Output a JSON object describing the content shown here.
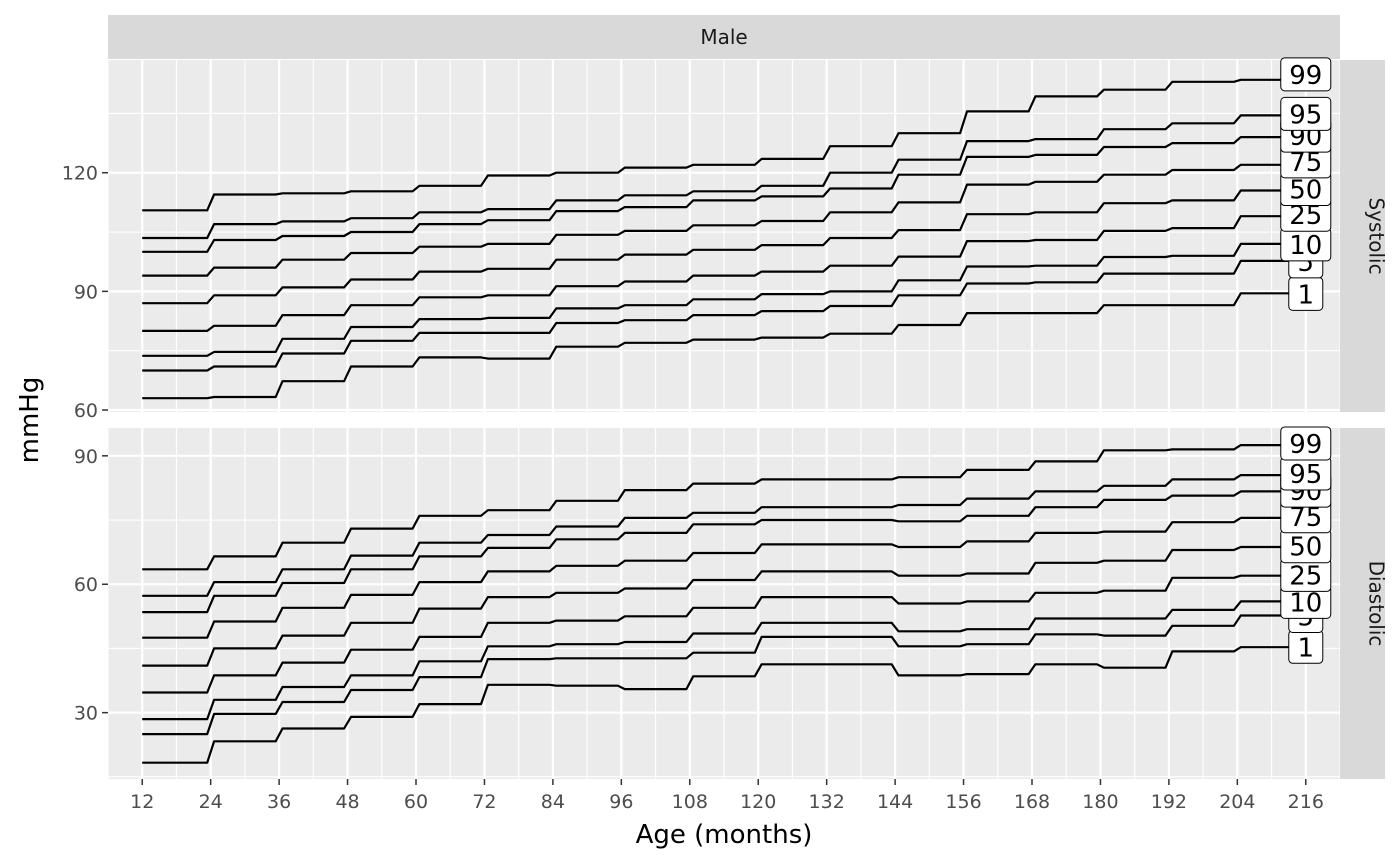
{
  "chart_data": {
    "type": "line",
    "line_shape": "step",
    "facet_column": "Male",
    "facet_rows": [
      "Systolic",
      "Diastolic"
    ],
    "xlabel": "Age (months)",
    "ylabel": "mmHg",
    "x_ticks": [
      12,
      24,
      36,
      48,
      60,
      72,
      84,
      96,
      108,
      120,
      132,
      144,
      156,
      168,
      180,
      192,
      204,
      216
    ],
    "xlim": [
      6,
      222
    ],
    "grid": true,
    "legend": "none",
    "colors": {
      "panel_bg": "#ebebeb",
      "strip_bg": "#d9d9d9",
      "grid": "#ffffff",
      "line": "#000000",
      "label_bg": "#ffffff"
    },
    "x": [
      12,
      24,
      36,
      48,
      60,
      72,
      84,
      96,
      108,
      120,
      132,
      144,
      156,
      168,
      180,
      192,
      204,
      216
    ],
    "panels": [
      {
        "name": "Systolic",
        "ylim": [
          59.5,
          148.5
        ],
        "y_ticks": [
          60,
          90,
          120
        ],
        "series": [
          {
            "name": "1",
            "values": [
              63,
              63.3,
              67.3,
              71,
              73.3,
              73,
              76,
              77,
              77.8,
              78.3,
              79.3,
              81.5,
              84.5,
              84.5,
              86.5,
              86.5,
              89.5,
              89.5
            ]
          },
          {
            "name": "5",
            "values": [
              70,
              71,
              74.3,
              77.5,
              79.5,
              79.5,
              82,
              82.7,
              84,
              85,
              86.3,
              89,
              92,
              92.3,
              94.5,
              94.5,
              97.7,
              97.7
            ]
          },
          {
            "name": "10",
            "values": [
              73.7,
              74.7,
              78,
              81,
              83,
              83.3,
              85.7,
              86.5,
              88,
              89.3,
              90,
              92.8,
              96.3,
              96.5,
              98.7,
              99,
              102,
              102
            ]
          },
          {
            "name": "25",
            "values": [
              80,
              81.3,
              84,
              86.5,
              88.5,
              89,
              91.3,
              92.5,
              94,
              95,
              96.5,
              98.8,
              102.7,
              103,
              105.3,
              106,
              109,
              109.5
            ]
          },
          {
            "name": "50",
            "values": [
              87,
              89,
              91,
              93,
              95,
              95.7,
              98,
              99.3,
              100.5,
              101.7,
              103.5,
              105.5,
              109.5,
              110,
              112.3,
              113,
              115.5,
              116
            ]
          },
          {
            "name": "75",
            "values": [
              94,
              96,
              98,
              99.7,
              101.3,
              102,
              104.3,
              105.3,
              106.7,
              107.8,
              110,
              112.5,
              117,
              117.7,
              119.5,
              120.7,
              122,
              123
            ]
          },
          {
            "name": "90",
            "values": [
              100,
              103,
              104,
              105,
              107,
              108,
              110.3,
              111.3,
              113,
              114,
              116,
              119.5,
              124,
              124.5,
              126.5,
              127.5,
              129,
              129.5
            ]
          },
          {
            "name": "95",
            "values": [
              103.5,
              107,
              107.7,
              108.5,
              110,
              110.8,
              113,
              114.3,
              115.3,
              116.7,
              120,
              123.3,
              128,
              128.5,
              131,
              132.5,
              134.5,
              135
            ]
          },
          {
            "name": "99",
            "values": [
              110.5,
              114.5,
              114.8,
              115.3,
              116.7,
              119.3,
              120,
              121.3,
              122,
              123.5,
              126.7,
              130,
              135.5,
              139.3,
              141,
              143,
              143.5,
              145
            ]
          }
        ],
        "end_labels": [
          "1",
          "5",
          "10",
          "25",
          "50",
          "75",
          "90",
          "95",
          "99"
        ]
      },
      {
        "name": "Diastolic",
        "ylim": [
          14.5,
          96.5
        ],
        "y_ticks": [
          30,
          60,
          90
        ],
        "series": [
          {
            "name": "1",
            "values": [
              18.3,
              23.3,
              26.3,
              29,
              32,
              36.5,
              36.3,
              35.5,
              38.5,
              41.3,
              41.3,
              38.7,
              39,
              41.3,
              40.5,
              44.3,
              45.3,
              45.5
            ]
          },
          {
            "name": "5",
            "values": [
              25,
              29.7,
              32.5,
              35.3,
              38.3,
              42.5,
              42.7,
              42.7,
              44,
              47.7,
              47.7,
              45.5,
              46,
              48.3,
              48,
              50.3,
              52.7,
              52.7
            ]
          },
          {
            "name": "10",
            "values": [
              28.5,
              33,
              36,
              38.7,
              42,
              45.5,
              46,
              46.5,
              48.5,
              51,
              51,
              49,
              49.5,
              52,
              52,
              54,
              56,
              56
            ]
          },
          {
            "name": "25",
            "values": [
              34.7,
              38.7,
              41.7,
              44.7,
              47.7,
              51,
              51.5,
              52.5,
              54.5,
              57,
              57,
              55.5,
              56,
              58,
              58.5,
              61.5,
              62,
              62.3
            ]
          },
          {
            "name": "50",
            "values": [
              41,
              45,
              48,
              51,
              54.3,
              57,
              58,
              59,
              61,
              63,
              63,
              62,
              62.5,
              65,
              65.5,
              68,
              68.7,
              69
            ]
          },
          {
            "name": "75",
            "values": [
              47.5,
              51.3,
              54.5,
              57.5,
              60.5,
              63,
              64.3,
              65.5,
              67.3,
              69.3,
              69.3,
              68.7,
              70,
              72,
              72.3,
              74.5,
              75.5,
              76
            ]
          },
          {
            "name": "90",
            "values": [
              53.5,
              57.3,
              60.3,
              63.5,
              66.5,
              68.5,
              70.5,
              72,
              74,
              75,
              75,
              74.7,
              76,
              78,
              79.7,
              80.7,
              81.7,
              82
            ]
          },
          {
            "name": "95",
            "values": [
              57.3,
              60.5,
              63.5,
              66.7,
              69.7,
              71.5,
              73.5,
              75.5,
              76.7,
              78,
              78,
              78.5,
              80,
              81.7,
              83,
              84.5,
              85.5,
              86
            ]
          },
          {
            "name": "99",
            "values": [
              63.5,
              66.5,
              69.7,
              73,
              76,
              77.3,
              79.5,
              82,
              83.5,
              84.5,
              84.5,
              85,
              86.7,
              88.7,
              91.3,
              91.5,
              92.5,
              93
            ]
          }
        ],
        "end_labels": [
          "1",
          "5",
          "10",
          "25",
          "50",
          "75",
          "90",
          "95",
          "99"
        ]
      }
    ]
  }
}
